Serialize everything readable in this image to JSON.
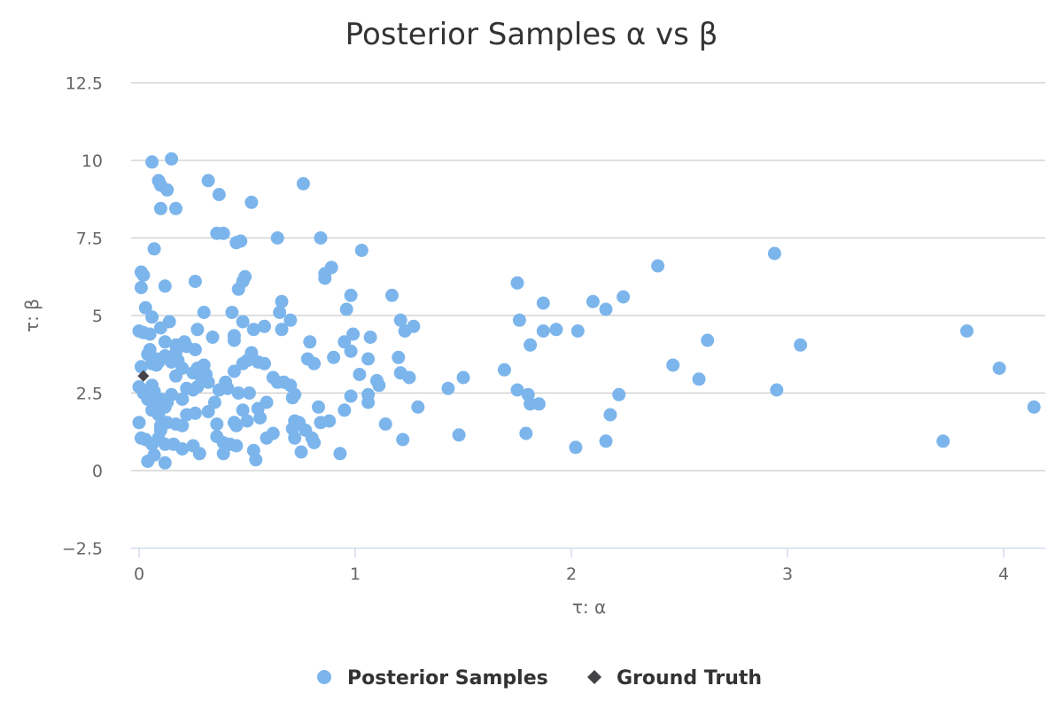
{
  "chart_data": {
    "type": "scatter",
    "title": "Posterior Samples α vs β",
    "xlabel": "τ: α",
    "ylabel": "τ: β",
    "xlim": [
      -0.05,
      4.2
    ],
    "ylim": [
      -2.5,
      12.5
    ],
    "x_ticks": [
      "0",
      "1",
      "2",
      "3",
      "4"
    ],
    "y_ticks": [
      "−2.5",
      "0",
      "2.5",
      "5",
      "7.5",
      "10",
      "12.5"
    ],
    "grid": "horizontal",
    "legend_position": "bottom-center",
    "colors": {
      "samples": "#7cb5ec",
      "truth": "#434348"
    },
    "series": [
      {
        "name": "Posterior Samples",
        "marker": "circle",
        "points": [
          [
            0.06,
            9.95
          ],
          [
            0.15,
            10.05
          ],
          [
            0.09,
            9.35
          ],
          [
            0.1,
            9.2
          ],
          [
            0.13,
            9.05
          ],
          [
            0.1,
            8.45
          ],
          [
            0.17,
            8.45
          ],
          [
            0.32,
            9.35
          ],
          [
            0.37,
            8.9
          ],
          [
            0.52,
            8.65
          ],
          [
            0.76,
            9.25
          ],
          [
            0.07,
            7.15
          ],
          [
            0.36,
            7.65
          ],
          [
            0.39,
            7.65
          ],
          [
            0.45,
            7.35
          ],
          [
            0.47,
            7.4
          ],
          [
            0.64,
            7.5
          ],
          [
            0.84,
            7.5
          ],
          [
            1.03,
            7.1
          ],
          [
            0.01,
            6.4
          ],
          [
            0.02,
            6.3
          ],
          [
            0.01,
            5.9
          ],
          [
            0.12,
            5.95
          ],
          [
            0.26,
            6.1
          ],
          [
            0.49,
            6.25
          ],
          [
            0.48,
            6.1
          ],
          [
            0.46,
            5.85
          ],
          [
            0.86,
            6.35
          ],
          [
            0.89,
            6.55
          ],
          [
            0.86,
            6.2
          ],
          [
            0.98,
            5.65
          ],
          [
            1.17,
            5.65
          ],
          [
            0.03,
            5.25
          ],
          [
            0.3,
            5.1
          ],
          [
            0.43,
            5.1
          ],
          [
            0.66,
            5.45
          ],
          [
            0.65,
            5.1
          ],
          [
            0.96,
            5.2
          ],
          [
            0.06,
            4.95
          ],
          [
            0.14,
            4.8
          ],
          [
            0.48,
            4.8
          ],
          [
            0.7,
            4.85
          ],
          [
            1.21,
            4.85
          ],
          [
            1.27,
            4.65
          ],
          [
            1.23,
            4.5
          ],
          [
            0.58,
            4.65
          ],
          [
            0.53,
            4.55
          ],
          [
            0.66,
            4.55
          ],
          [
            0.0,
            4.5
          ],
          [
            0.02,
            4.45
          ],
          [
            0.05,
            4.4
          ],
          [
            0.1,
            4.6
          ],
          [
            0.12,
            4.15
          ],
          [
            0.27,
            4.55
          ],
          [
            0.34,
            4.3
          ],
          [
            0.44,
            4.35
          ],
          [
            0.44,
            4.2
          ],
          [
            0.79,
            4.15
          ],
          [
            0.95,
            4.15
          ],
          [
            0.99,
            4.4
          ],
          [
            1.07,
            4.3
          ],
          [
            0.05,
            3.9
          ],
          [
            0.04,
            3.75
          ],
          [
            0.08,
            3.6
          ],
          [
            0.09,
            3.5
          ],
          [
            0.06,
            3.45
          ],
          [
            0.12,
            3.7
          ],
          [
            0.17,
            4.05
          ],
          [
            0.17,
            3.8
          ],
          [
            0.18,
            3.55
          ],
          [
            0.21,
            4.15
          ],
          [
            0.22,
            4.0
          ],
          [
            0.26,
            3.9
          ],
          [
            0.31,
            3.1
          ],
          [
            0.3,
            3.4
          ],
          [
            0.15,
            3.5
          ],
          [
            0.2,
            3.3
          ],
          [
            0.27,
            3.3
          ],
          [
            0.25,
            3.15
          ],
          [
            0.01,
            3.35
          ],
          [
            0.08,
            3.4
          ],
          [
            0.44,
            3.2
          ],
          [
            0.48,
            3.45
          ],
          [
            0.5,
            3.55
          ],
          [
            0.52,
            3.8
          ],
          [
            0.55,
            3.5
          ],
          [
            0.58,
            3.45
          ],
          [
            0.62,
            3.0
          ],
          [
            0.67,
            2.85
          ],
          [
            0.78,
            3.6
          ],
          [
            0.81,
            3.45
          ],
          [
            0.9,
            3.65
          ],
          [
            0.98,
            3.85
          ],
          [
            1.02,
            3.1
          ],
          [
            1.06,
            3.6
          ],
          [
            1.1,
            2.9
          ],
          [
            1.2,
            3.65
          ],
          [
            1.21,
            3.15
          ],
          [
            1.25,
            3.0
          ],
          [
            0.0,
            2.7
          ],
          [
            0.02,
            2.5
          ],
          [
            0.06,
            2.75
          ],
          [
            0.07,
            2.55
          ],
          [
            0.04,
            2.3
          ],
          [
            0.1,
            2.3
          ],
          [
            0.13,
            2.2
          ],
          [
            0.09,
            2.1
          ],
          [
            0.12,
            2.05
          ],
          [
            0.15,
            2.45
          ],
          [
            0.17,
            3.05
          ],
          [
            0.2,
            2.3
          ],
          [
            0.22,
            2.65
          ],
          [
            0.25,
            2.6
          ],
          [
            0.27,
            2.7
          ],
          [
            0.29,
            2.9
          ],
          [
            0.32,
            2.85
          ],
          [
            0.35,
            2.2
          ],
          [
            0.37,
            2.6
          ],
          [
            0.4,
            2.85
          ],
          [
            0.41,
            2.65
          ],
          [
            0.46,
            2.5
          ],
          [
            0.51,
            2.5
          ],
          [
            0.64,
            2.85
          ],
          [
            0.7,
            2.75
          ],
          [
            0.72,
            2.45
          ],
          [
            0.71,
            2.35
          ],
          [
            0.83,
            2.05
          ],
          [
            0.95,
            1.95
          ],
          [
            0.98,
            2.4
          ],
          [
            1.06,
            2.45
          ],
          [
            1.06,
            2.2
          ],
          [
            1.11,
            2.75
          ],
          [
            1.29,
            2.05
          ],
          [
            1.43,
            2.65
          ],
          [
            1.5,
            3.0
          ],
          [
            1.69,
            3.25
          ],
          [
            0.0,
            1.55
          ],
          [
            0.06,
            1.95
          ],
          [
            0.09,
            1.8
          ],
          [
            0.1,
            1.45
          ],
          [
            0.1,
            1.3
          ],
          [
            0.13,
            1.55
          ],
          [
            0.17,
            1.5
          ],
          [
            0.2,
            1.45
          ],
          [
            0.22,
            1.8
          ],
          [
            0.26,
            1.85
          ],
          [
            0.32,
            1.9
          ],
          [
            0.36,
            1.5
          ],
          [
            0.44,
            1.55
          ],
          [
            0.45,
            1.45
          ],
          [
            0.48,
            1.95
          ],
          [
            0.5,
            1.6
          ],
          [
            0.55,
            2.0
          ],
          [
            0.56,
            1.7
          ],
          [
            0.59,
            2.2
          ],
          [
            0.71,
            1.35
          ],
          [
            0.72,
            1.6
          ],
          [
            0.74,
            1.55
          ],
          [
            0.77,
            1.3
          ],
          [
            0.8,
            1.05
          ],
          [
            0.84,
            1.55
          ],
          [
            0.88,
            1.6
          ],
          [
            1.14,
            1.5
          ],
          [
            0.01,
            1.05
          ],
          [
            0.03,
            1.0
          ],
          [
            0.06,
            0.85
          ],
          [
            0.09,
            1.05
          ],
          [
            0.12,
            0.85
          ],
          [
            0.16,
            0.85
          ],
          [
            0.2,
            0.7
          ],
          [
            0.25,
            0.8
          ],
          [
            0.28,
            0.55
          ],
          [
            0.36,
            1.1
          ],
          [
            0.39,
            0.9
          ],
          [
            0.39,
            0.55
          ],
          [
            0.42,
            0.85
          ],
          [
            0.45,
            0.8
          ],
          [
            0.53,
            0.65
          ],
          [
            0.59,
            1.05
          ],
          [
            0.62,
            1.2
          ],
          [
            0.72,
            1.05
          ],
          [
            0.75,
            0.6
          ],
          [
            0.81,
            0.9
          ],
          [
            0.93,
            0.55
          ],
          [
            1.22,
            1.0
          ],
          [
            1.48,
            1.15
          ],
          [
            0.04,
            0.3
          ],
          [
            0.07,
            0.5
          ],
          [
            0.12,
            0.25
          ],
          [
            0.54,
            0.35
          ],
          [
            1.75,
            6.05
          ],
          [
            1.76,
            4.85
          ],
          [
            1.81,
            4.05
          ],
          [
            1.87,
            5.4
          ],
          [
            1.87,
            4.5
          ],
          [
            1.93,
            4.55
          ],
          [
            1.75,
            2.6
          ],
          [
            1.8,
            2.45
          ],
          [
            1.81,
            2.15
          ],
          [
            1.85,
            2.15
          ],
          [
            1.79,
            1.2
          ],
          [
            2.02,
            0.75
          ],
          [
            2.03,
            4.5
          ],
          [
            2.1,
            5.45
          ],
          [
            2.16,
            5.2
          ],
          [
            2.18,
            1.8
          ],
          [
            2.16,
            0.95
          ],
          [
            2.22,
            2.45
          ],
          [
            2.24,
            5.6
          ],
          [
            2.4,
            6.6
          ],
          [
            2.47,
            3.4
          ],
          [
            2.59,
            2.95
          ],
          [
            2.63,
            4.2
          ],
          [
            2.94,
            7.0
          ],
          [
            2.95,
            2.6
          ],
          [
            3.06,
            4.05
          ],
          [
            3.72,
            0.95
          ],
          [
            3.83,
            4.5
          ],
          [
            3.98,
            3.3
          ],
          [
            4.14,
            2.05
          ]
        ]
      },
      {
        "name": "Ground Truth",
        "marker": "diamond",
        "points": [
          [
            0.02,
            3.05
          ]
        ]
      }
    ]
  }
}
